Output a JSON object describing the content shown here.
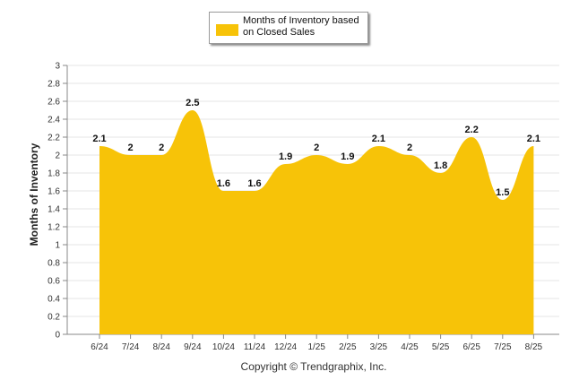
{
  "chart_data": {
    "type": "area",
    "title": "",
    "xlabel": "",
    "ylabel": "Months of Inventory",
    "categories": [
      "6/24",
      "7/24",
      "8/24",
      "9/24",
      "10/24",
      "11/24",
      "12/24",
      "1/25",
      "2/25",
      "3/25",
      "4/25",
      "5/25",
      "6/25",
      "7/25",
      "8/25"
    ],
    "series": [
      {
        "name": "Months of Inventory based on Closed Sales",
        "values": [
          2.1,
          2,
          2,
          2.5,
          1.6,
          1.6,
          1.9,
          2,
          1.9,
          2.1,
          2,
          1.8,
          2.2,
          1.5,
          2.1
        ],
        "labels": [
          "2.1",
          "2",
          "2",
          "2.5",
          "1.6",
          "1.6",
          "1.9",
          "2",
          "1.9",
          "2.1",
          "2",
          "1.8",
          "2.2",
          "1.5",
          "2.1"
        ],
        "color": "#f7c308"
      }
    ],
    "ylim": [
      0,
      3
    ],
    "yticks": [
      "0",
      "0.2",
      "0.4",
      "0.6",
      "0.8",
      "1",
      "1.2",
      "1.4",
      "1.6",
      "1.8",
      "2",
      "2.2",
      "2.4",
      "2.6",
      "2.8",
      "3"
    ],
    "grid": true,
    "legend": "top-center"
  },
  "copyright": "Copyright © Trendgraphix, Inc."
}
